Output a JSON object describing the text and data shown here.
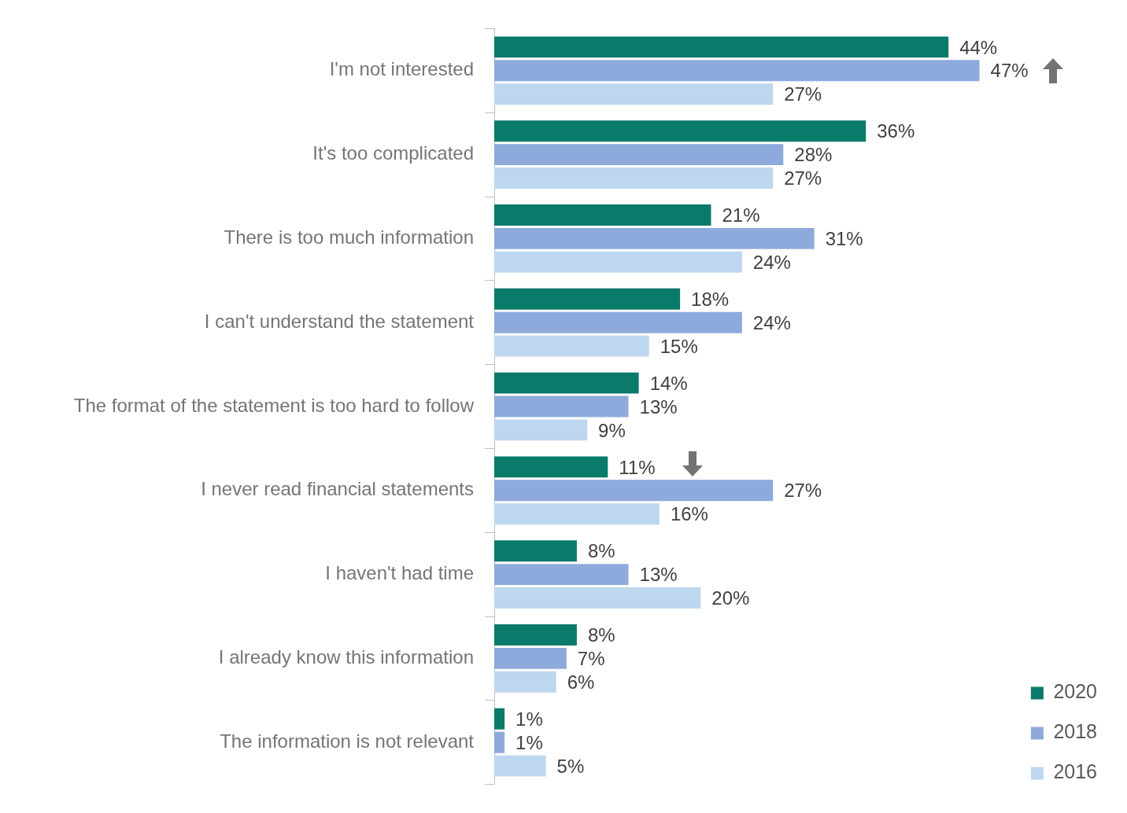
{
  "chart_data": {
    "type": "bar",
    "orientation": "horizontal",
    "categories": [
      "I'm not interested",
      "It's too complicated",
      "There is too much information",
      "I can't understand the statement",
      "The format of the statement is too hard to follow",
      "I never read financial statements",
      "I haven't had time",
      "I already know this information",
      "The information is not relevant"
    ],
    "series": [
      {
        "name": "2020",
        "color": "#0a7a6a",
        "values": [
          44,
          36,
          21,
          18,
          14,
          11,
          8,
          8,
          1
        ],
        "value_labels": [
          "44%",
          "36%",
          "21%",
          "18%",
          "14%",
          "11%",
          "8%",
          "8%",
          "1%"
        ]
      },
      {
        "name": "2018",
        "color": "#8eaadc",
        "values": [
          47,
          28,
          31,
          24,
          13,
          27,
          13,
          7,
          1
        ],
        "value_labels": [
          "47%",
          "28%",
          "31%",
          "24%",
          "13%",
          "27%",
          "13%",
          "7%",
          "1%"
        ]
      },
      {
        "name": "2016",
        "color": "#bdd7ee",
        "values": [
          27,
          27,
          24,
          15,
          9,
          16,
          20,
          6,
          5
        ],
        "value_labels": [
          "27%",
          "27%",
          "24%",
          "15%",
          "9%",
          "16%",
          "20%",
          "6%",
          "5%"
        ]
      }
    ],
    "legend": "bottom right",
    "grid": false
  }
}
